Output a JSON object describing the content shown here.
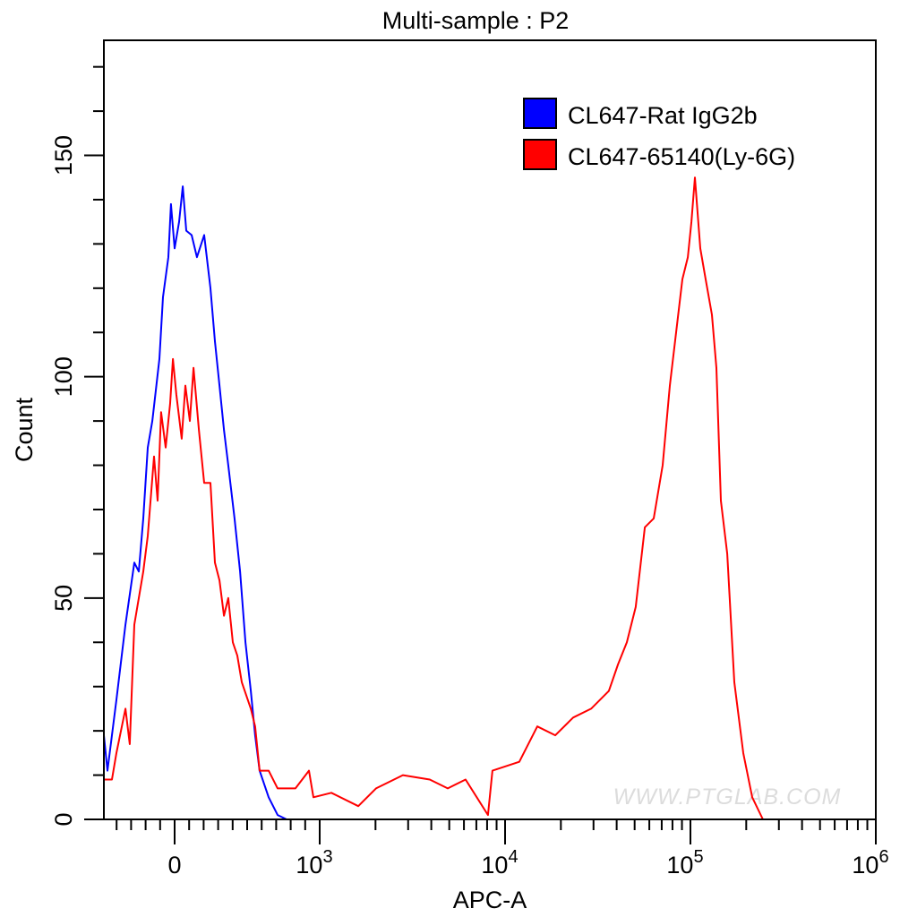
{
  "chart_data": {
    "type": "line",
    "title": "Multi-sample : P2",
    "xlabel": "APC-A",
    "ylabel": "Count",
    "x_scale": "biexponential",
    "xlim": [
      -488,
      1000000
    ],
    "ylim": [
      0,
      176
    ],
    "x_ticks": [
      {
        "value": 0,
        "label": "0",
        "exp": ""
      },
      {
        "value": 1000,
        "label": "10",
        "exp": "3"
      },
      {
        "value": 10000,
        "label": "10",
        "exp": "4"
      },
      {
        "value": 100000,
        "label": "10",
        "exp": "5"
      },
      {
        "value": 1000000,
        "label": "10",
        "exp": "6"
      }
    ],
    "y_ticks": [
      {
        "value": 0,
        "label": "0"
      },
      {
        "value": 50,
        "label": "50"
      },
      {
        "value": 100,
        "label": "100"
      },
      {
        "value": 150,
        "label": "150"
      }
    ],
    "grid": false,
    "legend_position": "top-right",
    "series": [
      {
        "name": "CL647-Rat IgG2b",
        "color": "#0000ff",
        "points": [
          [
            -488,
            19
          ],
          [
            -463,
            11
          ],
          [
            -401,
            27
          ],
          [
            -339,
            44
          ],
          [
            -278,
            58
          ],
          [
            -247,
            56
          ],
          [
            -216,
            68
          ],
          [
            -185,
            84
          ],
          [
            -154,
            90
          ],
          [
            -105,
            104
          ],
          [
            -80,
            118
          ],
          [
            -43,
            127
          ],
          [
            -25,
            139
          ],
          [
            0,
            129
          ],
          [
            31,
            135
          ],
          [
            56,
            143
          ],
          [
            80,
            133
          ],
          [
            117,
            132
          ],
          [
            154,
            127
          ],
          [
            204,
            132
          ],
          [
            247,
            120
          ],
          [
            278,
            108
          ],
          [
            309,
            98
          ],
          [
            340,
            88
          ],
          [
            370,
            80
          ],
          [
            413,
            68
          ],
          [
            451,
            56
          ],
          [
            488,
            40
          ],
          [
            525,
            29
          ],
          [
            555,
            19
          ],
          [
            586,
            11
          ],
          [
            648,
            5
          ],
          [
            710,
            1
          ],
          [
            772,
            0
          ],
          [
            988,
            0
          ]
        ]
      },
      {
        "name": "CL647-65140(Ly-6G)",
        "color": "#ff0000",
        "points": [
          [
            -488,
            9
          ],
          [
            -432,
            9
          ],
          [
            -401,
            15
          ],
          [
            -339,
            25
          ],
          [
            -309,
            17
          ],
          [
            -278,
            44
          ],
          [
            -216,
            56
          ],
          [
            -185,
            64
          ],
          [
            -142,
            82
          ],
          [
            -117,
            72
          ],
          [
            -93,
            92
          ],
          [
            -62,
            84
          ],
          [
            -31,
            94
          ],
          [
            -12,
            104
          ],
          [
            12,
            96
          ],
          [
            49,
            86
          ],
          [
            74,
            98
          ],
          [
            105,
            90
          ],
          [
            130,
            102
          ],
          [
            167,
            88
          ],
          [
            204,
            76
          ],
          [
            247,
            76
          ],
          [
            278,
            58
          ],
          [
            309,
            54
          ],
          [
            340,
            46
          ],
          [
            370,
            50
          ],
          [
            401,
            40
          ],
          [
            432,
            37
          ],
          [
            463,
            31
          ],
          [
            525,
            25
          ],
          [
            555,
            21
          ],
          [
            586,
            11
          ],
          [
            648,
            11
          ],
          [
            710,
            7
          ],
          [
            833,
            7
          ],
          [
            926,
            11
          ],
          [
            957,
            5
          ],
          [
            1155,
            6
          ],
          [
            1615,
            3
          ],
          [
            2014,
            7
          ],
          [
            2812,
            10
          ],
          [
            3926,
            9
          ],
          [
            4908,
            7
          ],
          [
            6123,
            9
          ],
          [
            8086,
            1
          ],
          [
            8553,
            11
          ],
          [
            11940,
            13
          ],
          [
            14930,
            21
          ],
          [
            18660,
            19
          ],
          [
            23290,
            23
          ],
          [
            29110,
            25
          ],
          [
            36310,
            29
          ],
          [
            40640,
            35
          ],
          [
            45400,
            40
          ],
          [
            50700,
            48
          ],
          [
            56750,
            66
          ],
          [
            63400,
            68
          ],
          [
            70800,
            80
          ],
          [
            77400,
            98
          ],
          [
            83700,
            110
          ],
          [
            90500,
            122
          ],
          [
            96800,
            127
          ],
          [
            101200,
            135
          ],
          [
            105700,
            145
          ],
          [
            113000,
            129
          ],
          [
            120800,
            122
          ],
          [
            130600,
            114
          ],
          [
            138100,
            102
          ],
          [
            146000,
            72
          ],
          [
            157900,
            60
          ],
          [
            172500,
            31
          ],
          [
            192800,
            15
          ],
          [
            215500,
            5
          ],
          [
            246000,
            0
          ]
        ]
      }
    ]
  },
  "watermark": "WWW.PTGLAB.COM"
}
